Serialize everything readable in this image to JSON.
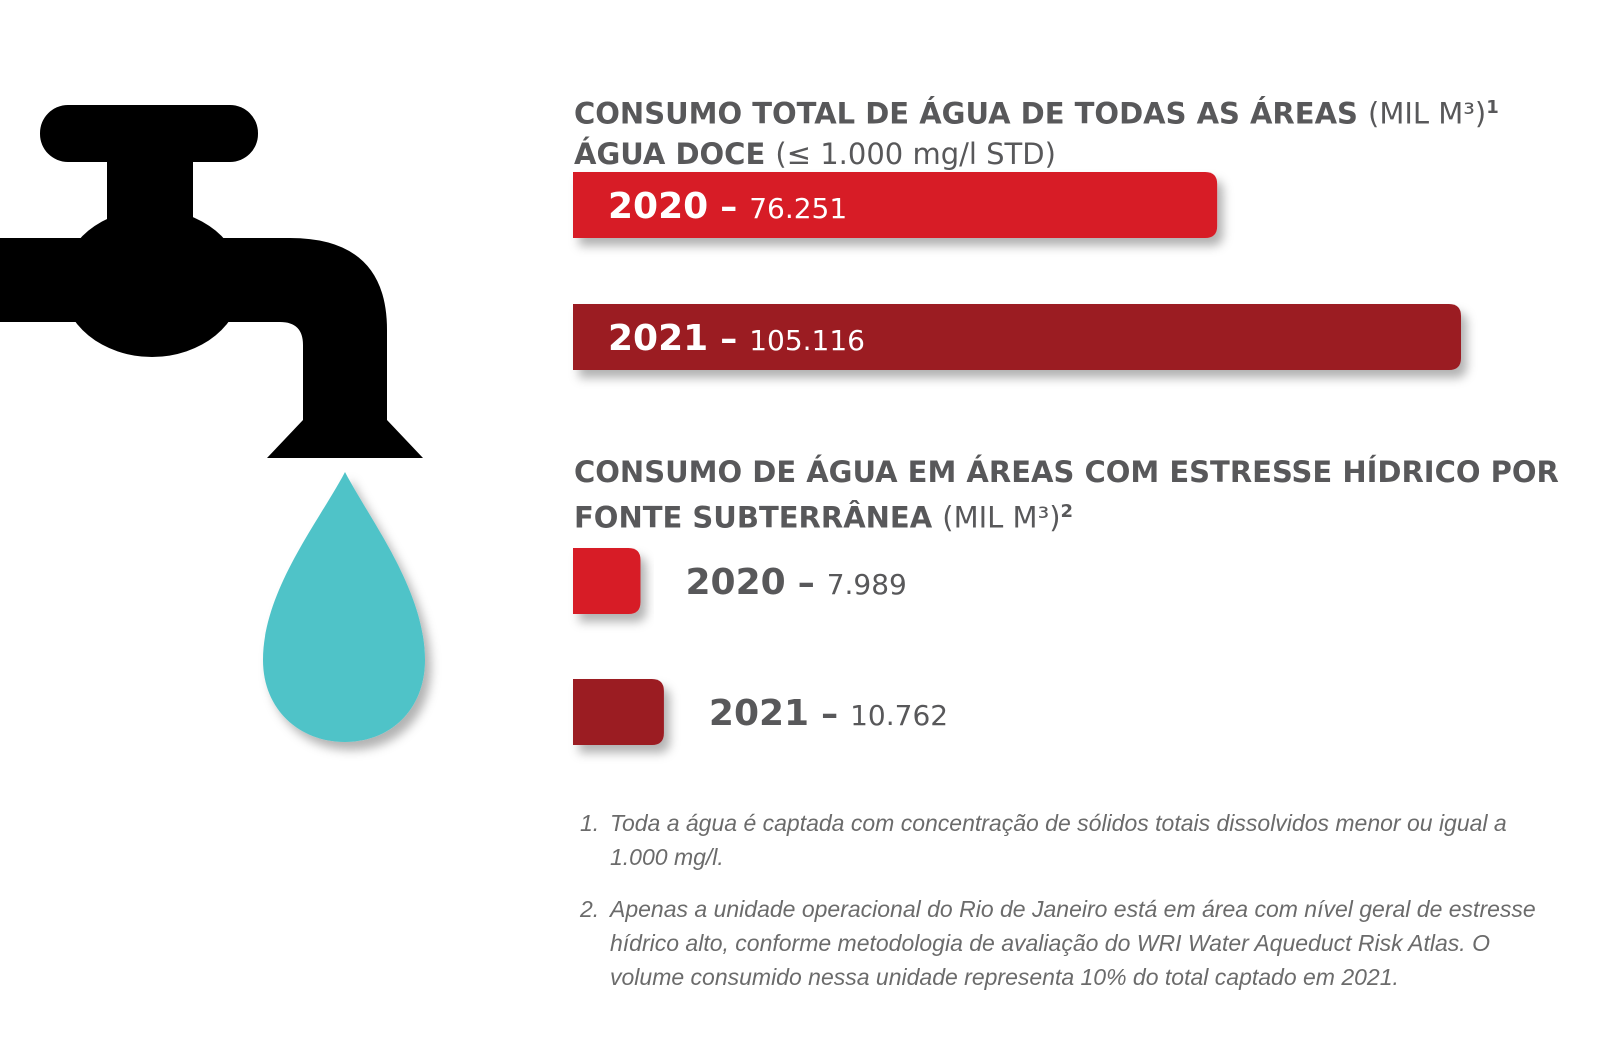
{
  "chart_data": [
    {
      "type": "bar",
      "orientation": "horizontal",
      "title": "CONSUMO TOTAL DE ÁGUA DE TODAS AS ÁREAS",
      "title_unit": "(MIL M³)",
      "title_note": "1",
      "subtitle": "ÁGUA DOCE",
      "subtitle_detail": "(≤ 1.000 mg/l STD)",
      "label_separator": "–",
      "categories": [
        "2020",
        "2021"
      ],
      "values": [
        76251,
        105116
      ],
      "value_labels": [
        "76.251",
        "105.116"
      ],
      "colors": [
        "#d71f27",
        "#9b1b24"
      ]
    },
    {
      "type": "bar",
      "orientation": "horizontal",
      "title": "CONSUMO DE ÁGUA EM ÁREAS COM ESTRESSE HÍDRICO POR FONTE SUBTERRÂNEA",
      "title_unit": "(MIL M³)",
      "title_note": "2",
      "label_separator": "–",
      "categories": [
        "2020",
        "2021"
      ],
      "values": [
        7989,
        10762
      ],
      "value_labels": [
        "7.989",
        "10.762"
      ],
      "colors": [
        "#d71f27",
        "#9b1b24"
      ]
    }
  ],
  "footnotes": [
    {
      "number": "1.",
      "text": "Toda a água é captada com concentração de sólidos totais dissolvidos menor ou igual a 1.000 mg/l."
    },
    {
      "number": "2.",
      "text": "Apenas a unidade operacional do Rio de Janeiro está em área com nível geral de estresse hídrico alto, conforme metodologia de avaliação do WRI Water Aqueduct Risk Atlas. O volume consumido nessa unidade representa 10% do total captado em 2021."
    }
  ]
}
